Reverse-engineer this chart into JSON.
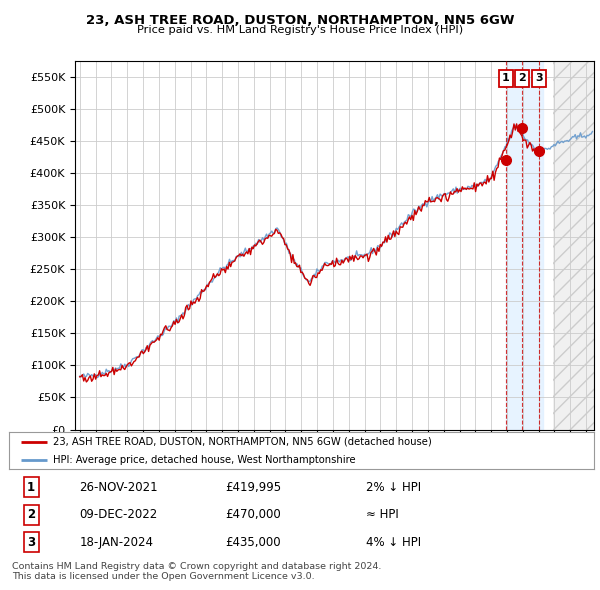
{
  "title": "23, ASH TREE ROAD, DUSTON, NORTHAMPTON, NN5 6GW",
  "subtitle": "Price paid vs. HM Land Registry's House Price Index (HPI)",
  "ylim": [
    0,
    575000
  ],
  "yticks": [
    0,
    50000,
    100000,
    150000,
    200000,
    250000,
    300000,
    350000,
    400000,
    450000,
    500000,
    550000
  ],
  "xlim_start": 1994.7,
  "xlim_end": 2027.5,
  "hpi_color": "#6699cc",
  "price_color": "#cc0000",
  "bg_color": "#ffffff",
  "grid_color": "#cccccc",
  "sale_dates_num": [
    2021.92,
    2022.95,
    2024.05
  ],
  "sale_prices": [
    419995,
    470000,
    435000
  ],
  "sale_labels": [
    "1",
    "2",
    "3"
  ],
  "shaded_start": 2021.92,
  "shaded_end": 2024.3,
  "hatch_start": 2024.92,
  "legend_label_price": "23, ASH TREE ROAD, DUSTON, NORTHAMPTON, NN5 6GW (detached house)",
  "legend_label_hpi": "HPI: Average price, detached house, West Northamptonshire",
  "table_rows": [
    [
      "1",
      "26-NOV-2021",
      "£419,995",
      "2% ↓ HPI"
    ],
    [
      "2",
      "09-DEC-2022",
      "£470,000",
      "≈ HPI"
    ],
    [
      "3",
      "18-JAN-2024",
      "£435,000",
      "4% ↓ HPI"
    ]
  ],
  "footnote": "Contains HM Land Registry data © Crown copyright and database right 2024.\nThis data is licensed under the Open Government Licence v3.0."
}
